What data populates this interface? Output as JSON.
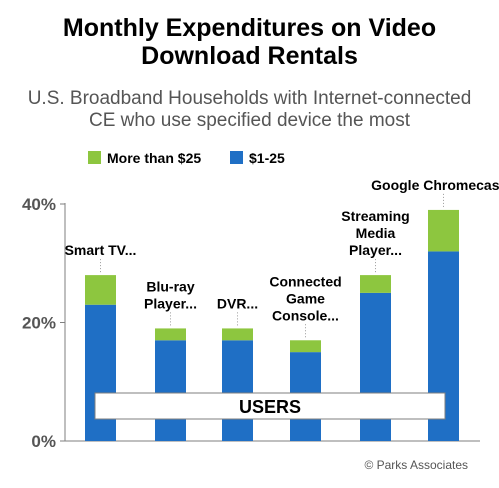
{
  "header": {
    "title_line1": "Monthly Expenditures on Video",
    "title_line2": "Download Rentals",
    "subtitle_line1": "U.S. Broadband Households with Internet-connected",
    "subtitle_line2": "CE who use specified device the most"
  },
  "footer": {
    "copyright": "© Parks Associates"
  },
  "chart_data": {
    "type": "bar",
    "stacked": true,
    "title": "Monthly Expenditures on Video Download Rentals",
    "subtitle": "U.S. Broadband Households with Internet-connected CE who use specified device the most",
    "categories": [
      [
        "Smart TV..."
      ],
      [
        "Blu-ray",
        "Player..."
      ],
      [
        "DVR..."
      ],
      [
        "Connected",
        "Game",
        "Console..."
      ],
      [
        "Streaming",
        "Media",
        "Player..."
      ],
      [
        "Google Chromecast..."
      ]
    ],
    "series": [
      {
        "name": "$1-25",
        "color": "#1f6fc5",
        "values": [
          23,
          17,
          17,
          15,
          25,
          32
        ]
      },
      {
        "name": "More than $25",
        "color": "#8dc63f",
        "values": [
          5,
          2,
          2,
          2,
          3,
          7
        ]
      }
    ],
    "legend_order": [
      "More than $25",
      "$1-25"
    ],
    "legend_position": "top-left",
    "ylim": [
      0,
      40
    ],
    "yticks": [
      0,
      20,
      40
    ],
    "ytick_labels": [
      "0%",
      "20%",
      "40%"
    ],
    "grid": false,
    "annotation": "USERS"
  }
}
